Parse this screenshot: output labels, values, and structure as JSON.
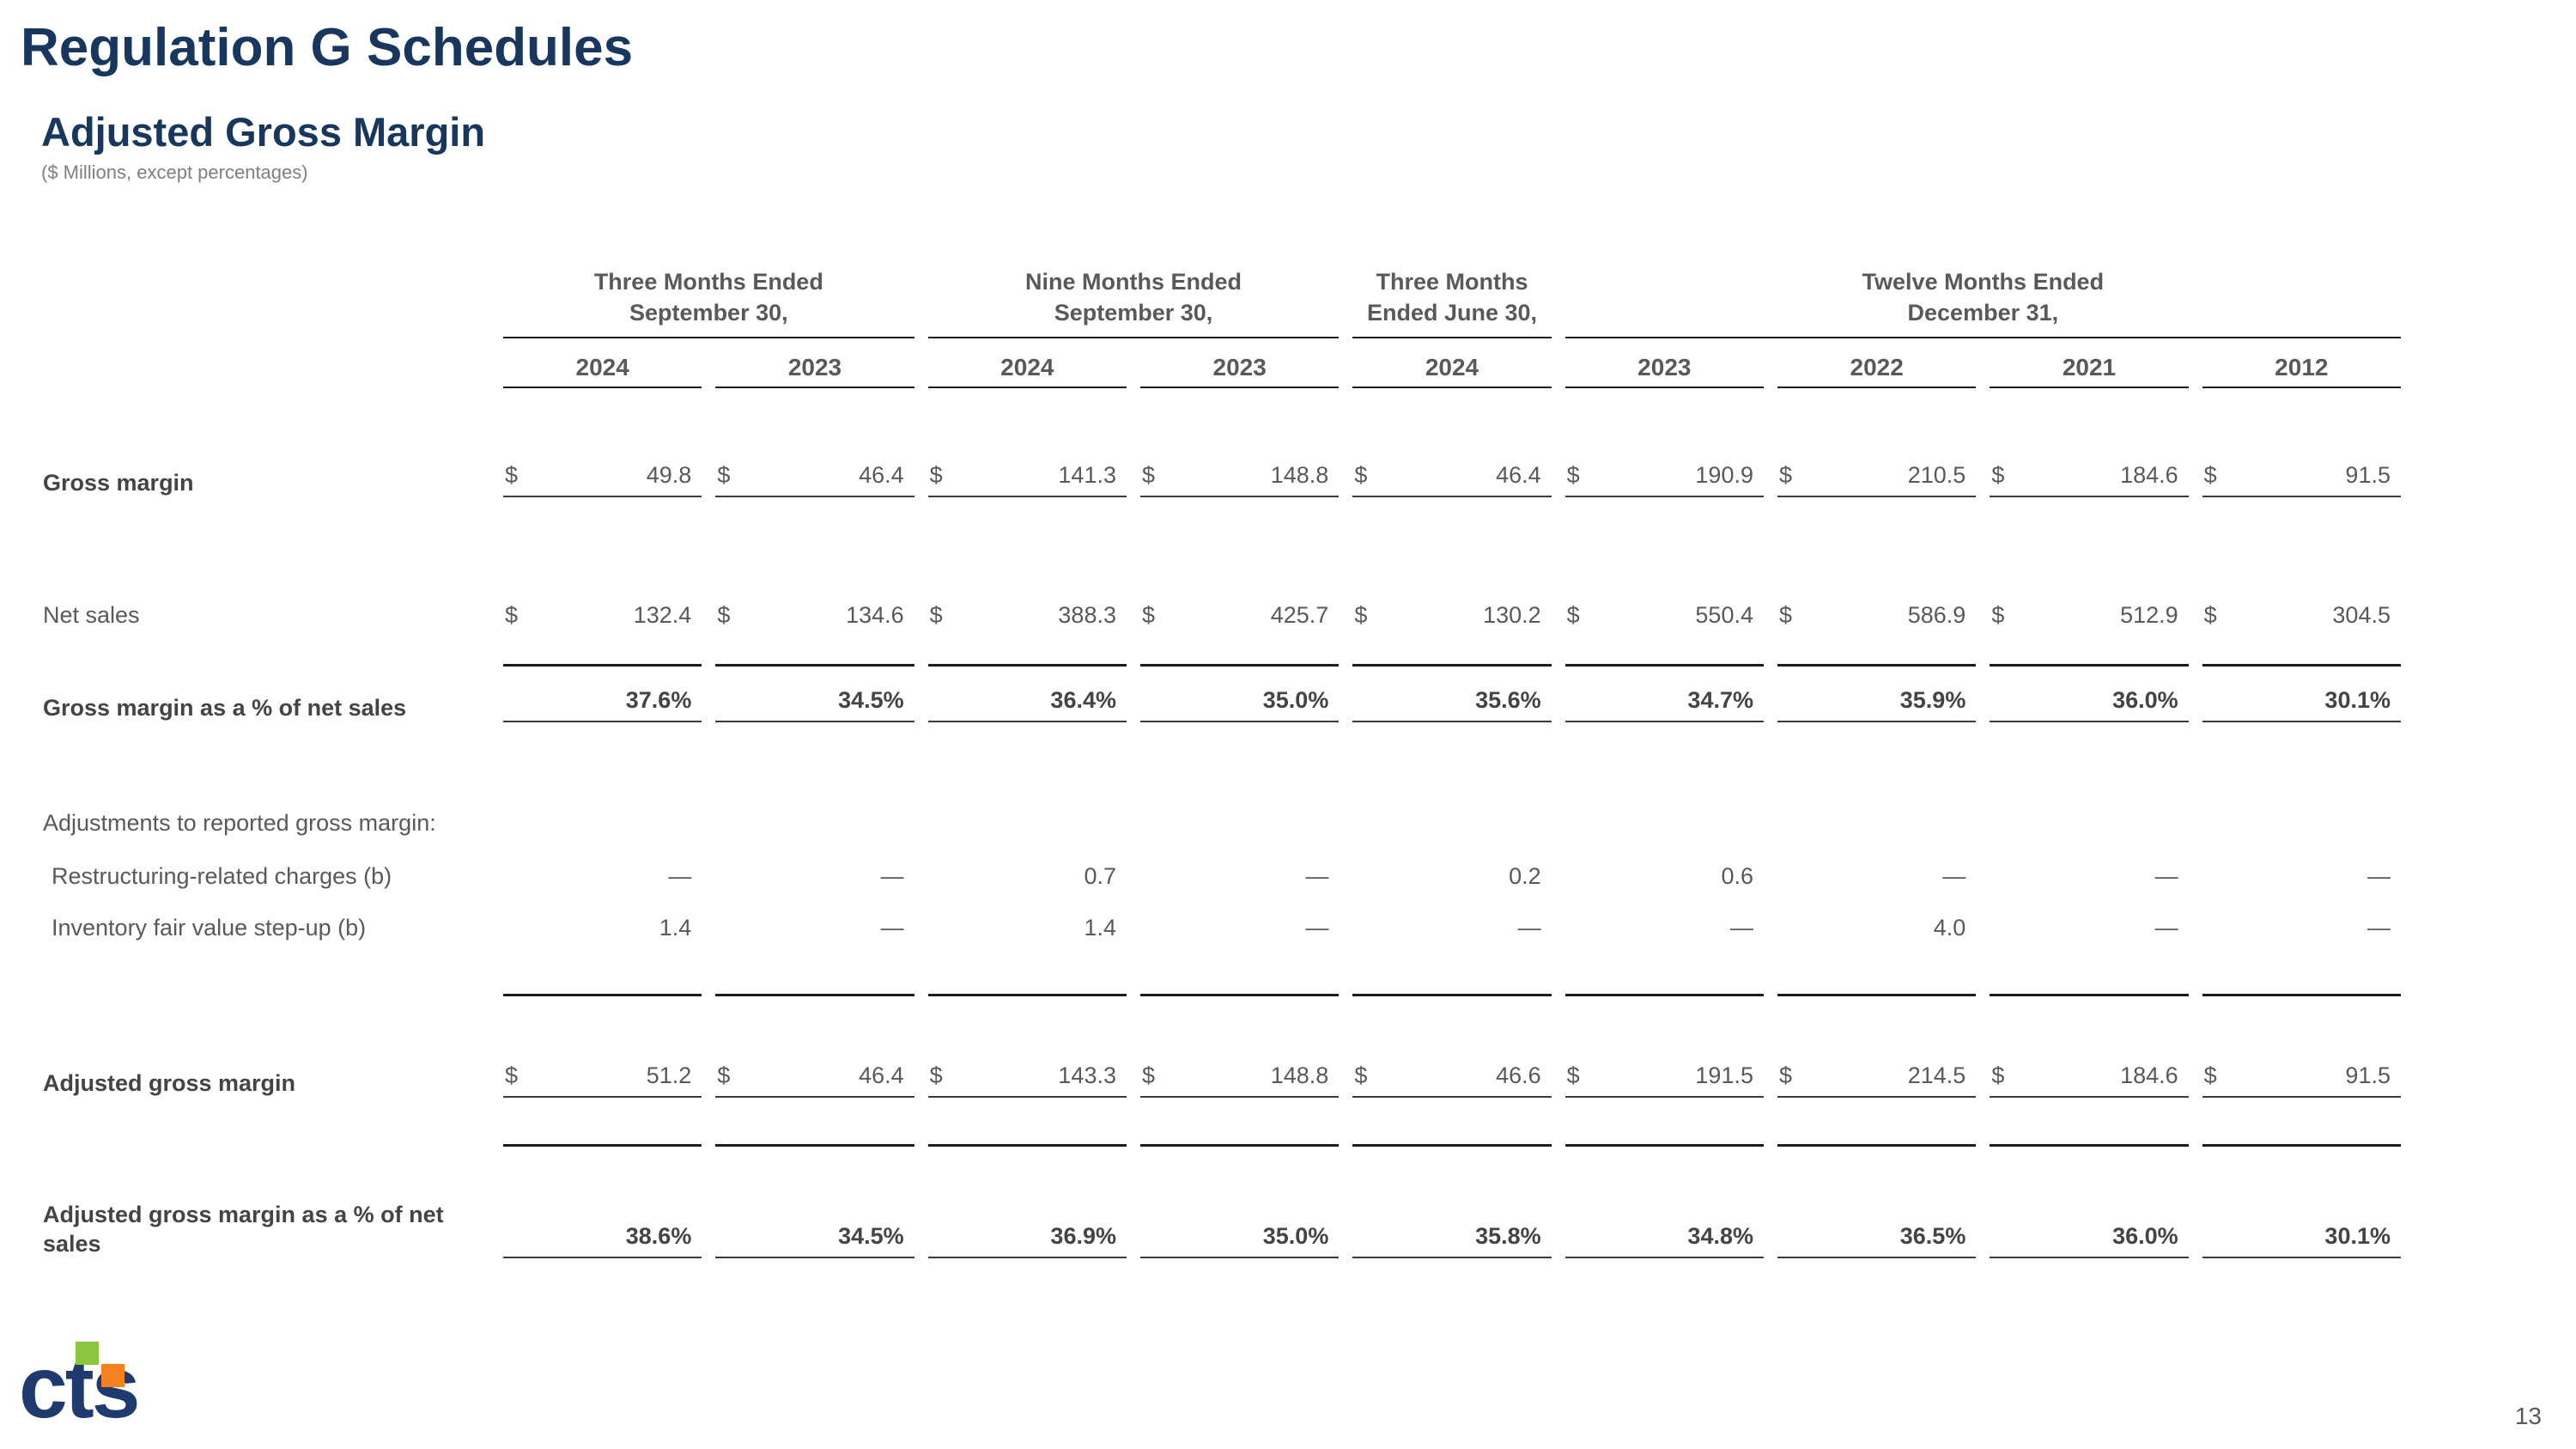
{
  "page": {
    "title": "Regulation G Schedules",
    "subtitle": "Adjusted Gross Margin",
    "note": "($ Millions, except percentages)",
    "page_number": "13",
    "logo_text": "cts"
  },
  "colors": {
    "title_navy": "#17375E",
    "logo_navy": "#1E3A6E",
    "logo_green": "#8CC63F",
    "logo_orange": "#F5821F",
    "text_gray": "#595959",
    "text_dark": "#444444"
  },
  "table": {
    "column_groups": [
      {
        "lines": [
          "Three Months Ended",
          "September 30,"
        ],
        "span": 2
      },
      {
        "lines": [
          "Nine Months Ended",
          "September 30,"
        ],
        "span": 2
      },
      {
        "lines": [
          "Three Months",
          "Ended June 30,"
        ],
        "span": 1
      },
      {
        "lines": [
          "Twelve Months Ended",
          "December 31,"
        ],
        "span": 4
      }
    ],
    "years": [
      "2024",
      "2023",
      "2024",
      "2023",
      "2024",
      "2023",
      "2022",
      "2021",
      "2012"
    ],
    "rows": [
      {
        "type": "data",
        "mt": 84,
        "label": "Gross margin",
        "label_bold": true,
        "dollar": true,
        "underline": true,
        "values": [
          "49.8",
          "46.4",
          "141.3",
          "148.8",
          "46.4",
          "190.9",
          "210.5",
          "184.6",
          "91.5"
        ]
      },
      {
        "type": "data",
        "mt": 120,
        "label": "Net sales",
        "dollar": true,
        "values": [
          "132.4",
          "134.6",
          "388.3",
          "425.7",
          "130.2",
          "550.4",
          "586.9",
          "512.9",
          "304.5"
        ]
      },
      {
        "type": "rule",
        "mt": 40
      },
      {
        "type": "data",
        "mt": 22,
        "label": "Gross margin as a % of net sales",
        "label_bold": true,
        "value_bold": true,
        "underline": true,
        "values": [
          "37.6%",
          "34.5%",
          "36.4%",
          "35.0%",
          "35.6%",
          "34.7%",
          "35.9%",
          "36.0%",
          "30.1%"
        ]
      },
      {
        "type": "data",
        "mt": 100,
        "label": "Adjustments to reported gross margin:"
      },
      {
        "type": "data",
        "mt": 28,
        "label": "Restructuring-related charges (b)",
        "indent": true,
        "values": [
          "—",
          "—",
          "0.7",
          "—",
          "0.2",
          "0.6",
          "—",
          "—",
          "—"
        ]
      },
      {
        "type": "data",
        "mt": 26,
        "label": "Inventory fair value step-up (b)",
        "indent": true,
        "values": [
          "1.4",
          "—",
          "1.4",
          "—",
          "—",
          "—",
          "4.0",
          "—",
          "—"
        ]
      },
      {
        "type": "rule",
        "mt": 60
      },
      {
        "type": "data",
        "mt": 75,
        "label": "Adjusted gross margin",
        "label_bold": true,
        "dollar": true,
        "underline": true,
        "values": [
          "51.2",
          "46.4",
          "143.3",
          "148.8",
          "46.6",
          "191.5",
          "214.5",
          "184.6",
          "91.5"
        ]
      },
      {
        "type": "rule",
        "mt": 54
      },
      {
        "type": "data",
        "mt": 62,
        "label": "Adjusted gross margin as a % of net sales",
        "label_bold": true,
        "value_bold": true,
        "underline": true,
        "values": [
          "38.6%",
          "34.5%",
          "36.9%",
          "35.0%",
          "35.8%",
          "34.8%",
          "36.5%",
          "36.0%",
          "30.1%"
        ]
      }
    ]
  }
}
